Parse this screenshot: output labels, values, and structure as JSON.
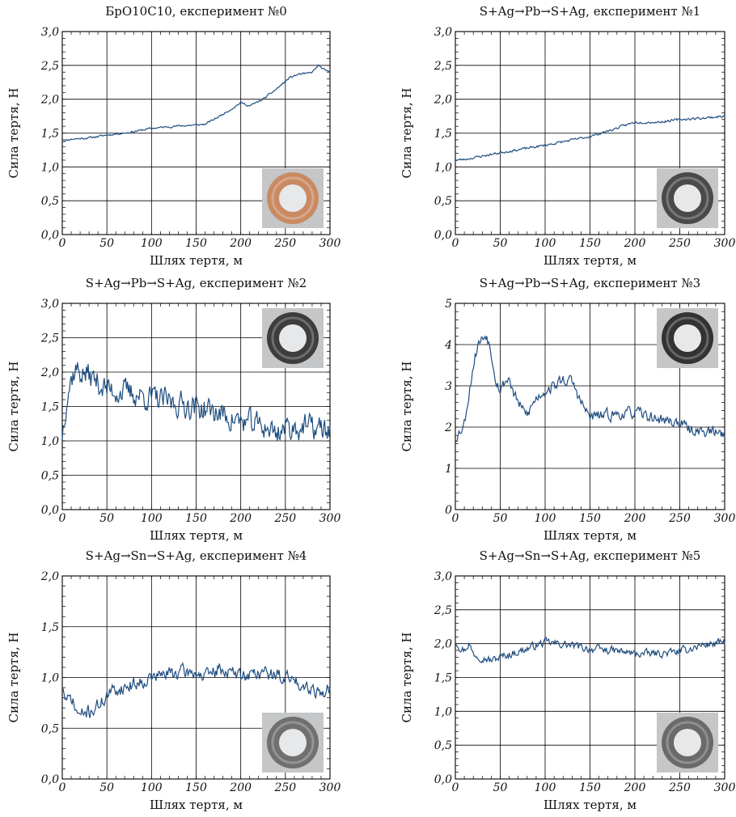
{
  "chart_data": [
    {
      "type": "line",
      "title": "БрО10С10, експеримент №0",
      "xlabel": "Шлях тертя, м",
      "ylabel": "Сила тертя, Н",
      "xlim": [
        0,
        300
      ],
      "ylim": [
        0,
        3
      ],
      "xticks": [
        "0",
        "50",
        "100",
        "150",
        "200",
        "250",
        "300"
      ],
      "yticks": [
        "0,0",
        "0,5",
        "1,0",
        "1,5",
        "2,0",
        "2,5",
        "3,0"
      ],
      "grid": true,
      "photo": {
        "ring": "bronze-ring",
        "color": "#c98a62",
        "position": "bottom-right"
      },
      "series": [
        {
          "color": "#1f4e80",
          "noise": 0.012,
          "seed": 11,
          "x": [
            0,
            10,
            30,
            50,
            75,
            100,
            125,
            150,
            160,
            175,
            190,
            200,
            210,
            225,
            240,
            255,
            265,
            275,
            280,
            287,
            295,
            300
          ],
          "y": [
            1.38,
            1.41,
            1.43,
            1.47,
            1.51,
            1.57,
            1.6,
            1.62,
            1.63,
            1.74,
            1.86,
            1.95,
            1.9,
            2.0,
            2.15,
            2.32,
            2.37,
            2.38,
            2.4,
            2.5,
            2.42,
            2.4
          ]
        }
      ]
    },
    {
      "type": "line",
      "title": "S+Ag→Pb→S+Ag, експеримент №1",
      "xlabel": "Шлях тертя, м",
      "ylabel": "Сила тертя, Н",
      "xlim": [
        0,
        300
      ],
      "ylim": [
        0,
        3
      ],
      "xticks": [
        "0",
        "50",
        "100",
        "150",
        "200",
        "250",
        "300"
      ],
      "yticks": [
        "0,0",
        "0,5",
        "1,0",
        "1,5",
        "2,0",
        "2,5",
        "3,0"
      ],
      "grid": true,
      "photo": {
        "ring": "dark-ring",
        "color": "#4a4a4a",
        "position": "bottom-right"
      },
      "series": [
        {
          "color": "#1f4e80",
          "noise": 0.015,
          "seed": 23,
          "x": [
            0,
            10,
            50,
            100,
            150,
            175,
            190,
            200,
            225,
            250,
            275,
            300
          ],
          "y": [
            1.1,
            1.11,
            1.21,
            1.32,
            1.45,
            1.55,
            1.62,
            1.66,
            1.66,
            1.7,
            1.72,
            1.75
          ]
        }
      ]
    },
    {
      "type": "line",
      "title": "S+Ag→Pb→S+Ag, експеримент №2",
      "xlabel": "Шлях тертя, м",
      "ylabel": "Сила тертя, Н",
      "xlim": [
        0,
        300
      ],
      "ylim": [
        0,
        3
      ],
      "xticks": [
        "0",
        "50",
        "100",
        "150",
        "200",
        "250",
        "300"
      ],
      "yticks": [
        "0,0",
        "0,5",
        "1,0",
        "1,5",
        "2,0",
        "2,5",
        "3,0"
      ],
      "grid": true,
      "photo": {
        "ring": "dark-ring",
        "color": "#3d3d3d",
        "position": "top-right"
      },
      "series": [
        {
          "color": "#1f4e80",
          "noise": 0.16,
          "seed": 37,
          "x": [
            0,
            5,
            10,
            15,
            20,
            30,
            40,
            50,
            75,
            100,
            125,
            150,
            175,
            200,
            225,
            240,
            250,
            275,
            300
          ],
          "y": [
            1.1,
            1.65,
            1.9,
            2.05,
            2.0,
            1.95,
            1.85,
            1.75,
            1.7,
            1.62,
            1.55,
            1.5,
            1.4,
            1.28,
            1.22,
            1.12,
            1.2,
            1.2,
            1.15
          ]
        }
      ]
    },
    {
      "type": "line",
      "title": "S+Ag→Pb→S+Ag, експеримент №3",
      "xlabel": "Шлях тертя, м",
      "ylabel": "Сила тертя, Н",
      "xlim": [
        0,
        300
      ],
      "ylim": [
        0,
        5
      ],
      "xticks": [
        "0",
        "50",
        "100",
        "150",
        "200",
        "250",
        "300"
      ],
      "yticks": [
        "0",
        "1",
        "2",
        "3",
        "4",
        "5"
      ],
      "grid": true,
      "photo": {
        "ring": "dark-ring",
        "color": "#333333",
        "position": "top-right"
      },
      "series": [
        {
          "color": "#1f4e80",
          "noise": 0.12,
          "seed": 53,
          "x": [
            0,
            5,
            10,
            15,
            20,
            25,
            30,
            35,
            40,
            45,
            50,
            55,
            60,
            65,
            70,
            75,
            80,
            90,
            100,
            110,
            120,
            130,
            140,
            145,
            150,
            175,
            200,
            225,
            250,
            260,
            275,
            300
          ],
          "y": [
            1.75,
            1.9,
            2.1,
            2.8,
            3.5,
            4.0,
            4.15,
            4.25,
            3.8,
            3.2,
            2.9,
            3.1,
            3.2,
            2.8,
            2.6,
            2.4,
            2.3,
            2.7,
            2.9,
            3.0,
            3.15,
            3.1,
            2.6,
            2.4,
            2.25,
            2.3,
            2.35,
            2.2,
            2.1,
            1.95,
            1.9,
            1.85
          ]
        }
      ]
    },
    {
      "type": "line",
      "title": "S+Ag→Sn→S+Ag, експеримент №4",
      "xlabel": "Шлях тертя, м",
      "ylabel": "Сила тертя, Н",
      "xlim": [
        0,
        300
      ],
      "ylim": [
        0,
        2
      ],
      "xticks": [
        "0",
        "50",
        "100",
        "150",
        "200",
        "250",
        "300"
      ],
      "yticks": [
        "0,0",
        "0,5",
        "1,0",
        "1,5",
        "2,0"
      ],
      "grid": true,
      "photo": {
        "ring": "grey-ring",
        "color": "#707070",
        "position": "bottom-right"
      },
      "series": [
        {
          "color": "#1f4e80",
          "noise": 0.06,
          "seed": 71,
          "x": [
            0,
            5,
            10,
            15,
            20,
            25,
            30,
            40,
            50,
            60,
            75,
            100,
            125,
            150,
            160,
            175,
            200,
            225,
            250,
            275,
            290,
            300
          ],
          "y": [
            0.9,
            0.75,
            0.8,
            0.68,
            0.62,
            0.65,
            0.66,
            0.72,
            0.82,
            0.88,
            0.92,
            1.0,
            1.05,
            1.05,
            1.0,
            1.08,
            1.02,
            1.05,
            1.0,
            0.92,
            0.85,
            0.88
          ]
        }
      ]
    },
    {
      "type": "line",
      "title": "S+Ag→Sn→S+Ag, експеримент №5",
      "xlabel": "Шлях тертя, м",
      "ylabel": "Сила тертя, Н",
      "xlim": [
        0,
        300
      ],
      "ylim": [
        0,
        3
      ],
      "xticks": [
        "0",
        "50",
        "100",
        "150",
        "200",
        "250",
        "300"
      ],
      "yticks": [
        "0,0",
        "0,5",
        "1,0",
        "1,5",
        "2,0",
        "2,5",
        "3,0"
      ],
      "grid": true,
      "photo": {
        "ring": "grey-ring",
        "color": "#6a6a6a",
        "position": "bottom-right"
      },
      "series": [
        {
          "color": "#1f4e80",
          "noise": 0.05,
          "seed": 97,
          "x": [
            0,
            5,
            10,
            15,
            20,
            30,
            40,
            50,
            75,
            100,
            125,
            150,
            175,
            200,
            225,
            250,
            275,
            300
          ],
          "y": [
            2.05,
            1.95,
            1.9,
            2.0,
            1.85,
            1.8,
            1.75,
            1.8,
            1.9,
            2.02,
            1.98,
            1.92,
            1.9,
            1.85,
            1.85,
            1.88,
            1.98,
            2.02
          ]
        }
      ]
    }
  ]
}
